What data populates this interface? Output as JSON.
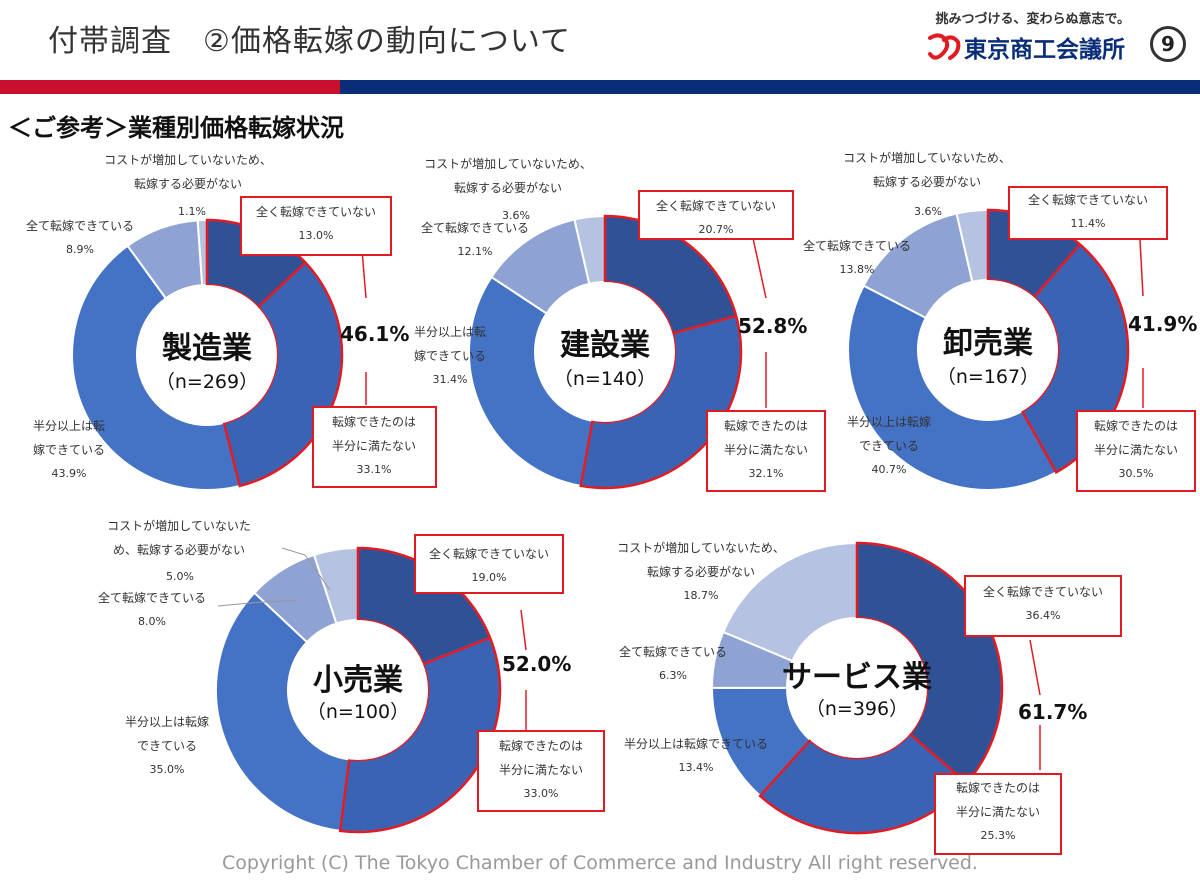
{
  "header": {
    "title": "付帯調査　②価格転嫁の動向について",
    "tagline": "挑みつづける、変わらぬ意志で。",
    "org": "東京商工会議所",
    "page": "9"
  },
  "section_title": "＜ご参考＞業種別価格転嫁状況",
  "colors": {
    "cat0": "#2f5196",
    "cat1": "#3b63b3",
    "cat2": "#4472c4",
    "cat3": "#8ea3d3",
    "cat4": "#b5c2e1",
    "highlight": "#e21b23",
    "band_red": "#c8102e",
    "band_blue": "#0a2d7a"
  },
  "chart_data": [
    {
      "type": "pie",
      "name": "製造業",
      "n": "（n=269）",
      "total": "46.1%",
      "categories": [
        "全く転嫁できていない",
        "転嫁できたのは半分に満たない",
        "半分以上は転嫁できている",
        "全て転嫁できている",
        "コストが増加していないため、転嫁する必要がない"
      ],
      "values": [
        13.0,
        33.1,
        43.9,
        8.9,
        1.1
      ],
      "labels": [
        {
          "l1": "全く転嫁できていない",
          "l2": "",
          "v": "13.0%"
        },
        {
          "l1": "転嫁できたのは",
          "l2": "半分に満たない",
          "v": "33.1%"
        },
        {
          "l1": "半分以上は転",
          "l2": "嫁できている",
          "v": "43.9%"
        },
        {
          "l1": "全て転嫁できている",
          "l2": "",
          "v": "8.9%"
        },
        {
          "l1": "コストが増加していないため、",
          "l2": "転嫁する必要がない",
          "v": "1.1%"
        }
      ]
    },
    {
      "type": "pie",
      "name": "建設業",
      "n": "（n=140）",
      "total": "52.8%",
      "categories": [
        "全く転嫁できていない",
        "転嫁できたのは半分に満たない",
        "半分以上は転嫁できている",
        "全て転嫁できている",
        "コストが増加していないため、転嫁する必要がない"
      ],
      "values": [
        20.7,
        32.1,
        31.4,
        12.1,
        3.6
      ],
      "labels": [
        {
          "l1": "全く転嫁できていない",
          "l2": "",
          "v": "20.7%"
        },
        {
          "l1": "転嫁できたのは",
          "l2": "半分に満たない",
          "v": "32.1%"
        },
        {
          "l1": "半分以上は転",
          "l2": "嫁できている",
          "v": "31.4%"
        },
        {
          "l1": "全て転嫁できている",
          "l2": "",
          "v": "12.1%"
        },
        {
          "l1": "コストが増加していないため、",
          "l2": "転嫁する必要がない",
          "v": "3.6%"
        }
      ]
    },
    {
      "type": "pie",
      "name": "卸売業",
      "n": "（n=167）",
      "total": "41.9%",
      "categories": [
        "全く転嫁できていない",
        "転嫁できたのは半分に満たない",
        "半分以上は転嫁できている",
        "全て転嫁できている",
        "コストが増加していないため、転嫁する必要がない"
      ],
      "values": [
        11.4,
        30.5,
        40.7,
        13.8,
        3.6
      ],
      "labels": [
        {
          "l1": "全く転嫁できていない",
          "l2": "",
          "v": "11.4%"
        },
        {
          "l1": "転嫁できたのは",
          "l2": "半分に満たない",
          "v": "30.5%"
        },
        {
          "l1": "半分以上は転嫁",
          "l2": "できている",
          "v": "40.7%"
        },
        {
          "l1": "全て転嫁できている",
          "l2": "",
          "v": "13.8%"
        },
        {
          "l1": "コストが増加していないため、",
          "l2": "転嫁する必要がない",
          "v": "3.6%"
        }
      ]
    },
    {
      "type": "pie",
      "name": "小売業",
      "n": "（n=100）",
      "total": "52.0%",
      "categories": [
        "全く転嫁できていない",
        "転嫁できたのは半分に満たない",
        "半分以上は転嫁できている",
        "全て転嫁できている",
        "コストが増加していないため、転嫁する必要がない"
      ],
      "values": [
        19.0,
        33.0,
        35.0,
        8.0,
        5.0
      ],
      "labels": [
        {
          "l1": "全く転嫁できていない",
          "l2": "",
          "v": "19.0%"
        },
        {
          "l1": "転嫁できたのは",
          "l2": "半分に満たない",
          "v": "33.0%"
        },
        {
          "l1": "半分以上は転嫁",
          "l2": "できている",
          "v": "35.0%"
        },
        {
          "l1": "全て転嫁できている",
          "l2": "",
          "v": "8.0%"
        },
        {
          "l1": "コストが増加していないた",
          "l2": "め、転嫁する必要がない",
          "v": "5.0%"
        }
      ]
    },
    {
      "type": "pie",
      "name": "サービス業",
      "n": "（n=396）",
      "total": "61.7%",
      "categories": [
        "全く転嫁できていない",
        "転嫁できたのは半分に満たない",
        "半分以上は転嫁できている",
        "全て転嫁できている",
        "コストが増加していないため、転嫁する必要がない"
      ],
      "values": [
        36.4,
        25.3,
        13.4,
        6.3,
        18.7
      ],
      "labels": [
        {
          "l1": "全く転嫁できていない",
          "l2": "",
          "v": "36.4%"
        },
        {
          "l1": "転嫁できたのは",
          "l2": "半分に満たない",
          "v": "25.3%"
        },
        {
          "l1": "半分以上は転嫁できている",
          "l2": "",
          "v": "13.4%"
        },
        {
          "l1": "全て転嫁できている",
          "l2": "",
          "v": "6.3%"
        },
        {
          "l1": "コストが増加していないため、",
          "l2": "転嫁する必要がない",
          "v": "18.7%"
        }
      ]
    }
  ],
  "copyright": "Copyright (C) The Tokyo Chamber of Commerce and Industry All right reserved."
}
